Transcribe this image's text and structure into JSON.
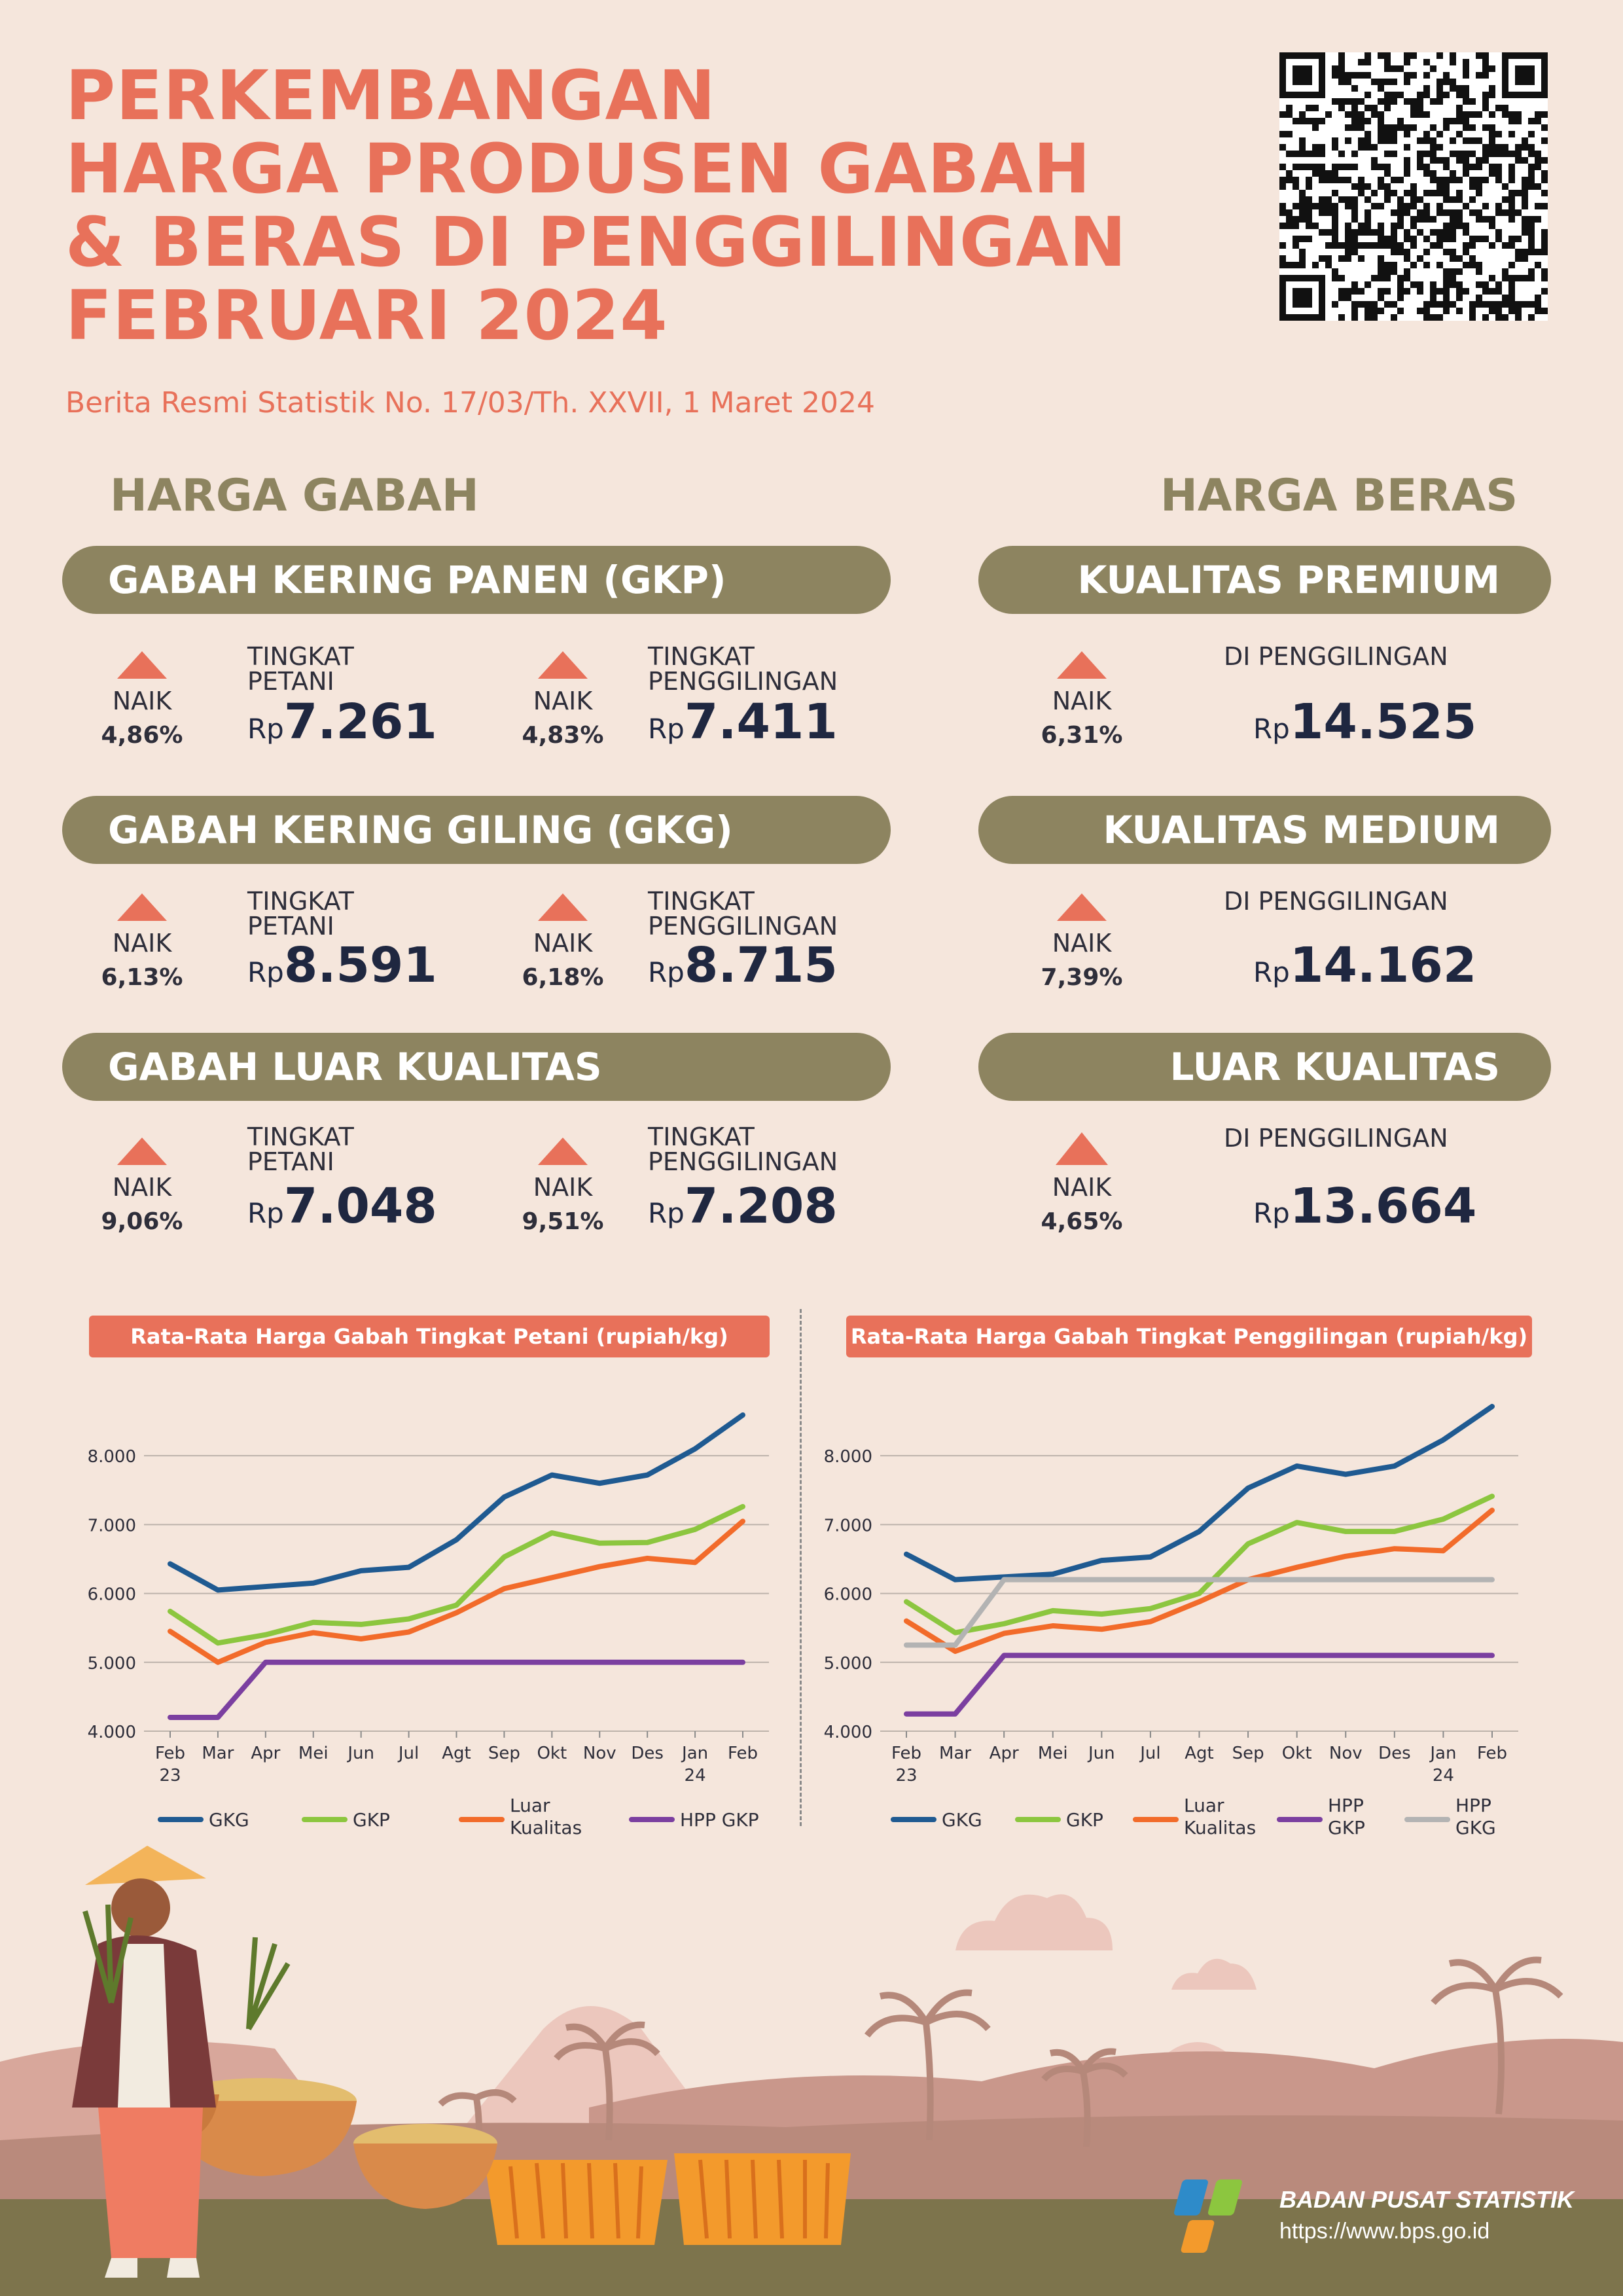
{
  "header": {
    "title_lines": [
      "PERKEMBANGAN",
      "HARGA PRODUSEN GABAH",
      "& BERAS DI PENGGILINGAN",
      "FEBRUARI 2024"
    ],
    "subtitle": "Berita Resmi Statistik No. 17/03/Th. XXVII, 1 Maret 2024"
  },
  "gabah": {
    "heading": "HARGA GABAH",
    "groups": [
      {
        "label": "GABAH KERING PANEN (GKP)",
        "items": [
          {
            "trend": "NAIK",
            "pct": "4,86%",
            "level": [
              "TINGKAT",
              "PETANI"
            ],
            "rp": "Rp",
            "price": "7.261"
          },
          {
            "trend": "NAIK",
            "pct": "4,83%",
            "level": [
              "TINGKAT",
              "PENGGILINGAN"
            ],
            "rp": "Rp",
            "price": "7.411"
          }
        ]
      },
      {
        "label": "GABAH KERING GILING (GKG)",
        "items": [
          {
            "trend": "NAIK",
            "pct": "6,13%",
            "level": [
              "TINGKAT",
              "PETANI"
            ],
            "rp": "Rp",
            "price": "8.591"
          },
          {
            "trend": "NAIK",
            "pct": "6,18%",
            "level": [
              "TINGKAT",
              "PENGGILINGAN"
            ],
            "rp": "Rp",
            "price": "8.715"
          }
        ]
      },
      {
        "label": "GABAH LUAR KUALITAS",
        "items": [
          {
            "trend": "NAIK",
            "pct": "9,06%",
            "level": [
              "TINGKAT",
              "PETANI"
            ],
            "rp": "Rp",
            "price": "7.048"
          },
          {
            "trend": "NAIK",
            "pct": "9,51%",
            "level": [
              "TINGKAT",
              "PENGGILINGAN"
            ],
            "rp": "Rp",
            "price": "7.208"
          }
        ]
      }
    ]
  },
  "beras": {
    "heading": "HARGA BERAS",
    "groups": [
      {
        "label": "KUALITAS PREMIUM",
        "trend": "NAIK",
        "pct": "6,31%",
        "level": "DI PENGGILINGAN",
        "rp": "Rp",
        "price": "14.525"
      },
      {
        "label": "KUALITAS MEDIUM",
        "trend": "NAIK",
        "pct": "7,39%",
        "level": "DI PENGGILINGAN",
        "rp": "Rp",
        "price": "14.162"
      },
      {
        "label": "LUAR KUALITAS",
        "trend": "NAIK",
        "pct": "4,65%",
        "level": "DI PENGGILINGAN",
        "rp": "Rp",
        "price": "13.664"
      }
    ]
  },
  "colors": {
    "accent": "#e8715a",
    "olive": "#8d8460",
    "background": "#f5e6dc",
    "GKG": "#1f5a91",
    "GKP": "#8cc63f",
    "Luar Kualitas": "#f26b2a",
    "HPP GKP": "#7b3fa0",
    "HPP GKG": "#b3b3b3"
  },
  "chart_data": [
    {
      "type": "line",
      "title": "Rata-Rata Harga Gabah Tingkat Petani (rupiah/kg)",
      "categories": [
        "Feb\n23",
        "Mar",
        "Apr",
        "Mei",
        "Jun",
        "Jul",
        "Agt",
        "Sep",
        "Okt",
        "Nov",
        "Des",
        "Jan\n24",
        "Feb"
      ],
      "yticks": [
        "4.000",
        "5.000",
        "6.000",
        "7.000",
        "8.000"
      ],
      "ylim": [
        4000,
        8800
      ],
      "grid": true,
      "legend_position": "bottom",
      "series": [
        {
          "name": "GKG",
          "legend": [
            "GKG"
          ],
          "values": [
            6430,
            6050,
            6100,
            6150,
            6330,
            6380,
            6780,
            7400,
            7720,
            7600,
            7720,
            8100,
            8591
          ]
        },
        {
          "name": "GKP",
          "legend": [
            "GKP"
          ],
          "values": [
            5740,
            5280,
            5400,
            5580,
            5550,
            5630,
            5830,
            6530,
            6880,
            6730,
            6740,
            6930,
            7261
          ]
        },
        {
          "name": "Luar Kualitas",
          "legend": [
            "Luar",
            "Kualitas"
          ],
          "values": [
            5450,
            5000,
            5290,
            5430,
            5340,
            5440,
            5720,
            6070,
            6230,
            6390,
            6510,
            6450,
            7048
          ]
        },
        {
          "name": "HPP GKP",
          "legend": [
            "HPP GKP"
          ],
          "values": [
            4200,
            4200,
            5000,
            5000,
            5000,
            5000,
            5000,
            5000,
            5000,
            5000,
            5000,
            5000,
            5000
          ]
        }
      ]
    },
    {
      "type": "line",
      "title": "Rata-Rata Harga Gabah Tingkat Penggilingan (rupiah/kg)",
      "categories": [
        "Feb\n23",
        "Mar",
        "Apr",
        "Mei",
        "Jun",
        "Jul",
        "Agt",
        "Sep",
        "Okt",
        "Nov",
        "Des",
        "Jan\n24",
        "Feb"
      ],
      "yticks": [
        "4.000",
        "5.000",
        "6.000",
        "7.000",
        "8.000"
      ],
      "ylim": [
        4000,
        8800
      ],
      "grid": true,
      "legend_position": "bottom",
      "series": [
        {
          "name": "GKG",
          "legend": [
            "GKG"
          ],
          "values": [
            6570,
            6200,
            6240,
            6280,
            6480,
            6530,
            6900,
            7530,
            7850,
            7730,
            7850,
            8230,
            8715
          ]
        },
        {
          "name": "GKP",
          "legend": [
            "GKP"
          ],
          "values": [
            5880,
            5430,
            5560,
            5750,
            5700,
            5780,
            6000,
            6720,
            7030,
            6900,
            6900,
            7080,
            7411
          ]
        },
        {
          "name": "Luar Kualitas",
          "legend": [
            "Luar",
            "Kualitas"
          ],
          "values": [
            5600,
            5160,
            5420,
            5530,
            5480,
            5590,
            5880,
            6200,
            6380,
            6540,
            6650,
            6620,
            7208
          ]
        },
        {
          "name": "HPP GKP",
          "legend": [
            "HPP",
            "GKP"
          ],
          "values": [
            4250,
            4250,
            5100,
            5100,
            5100,
            5100,
            5100,
            5100,
            5100,
            5100,
            5100,
            5100,
            5100
          ]
        },
        {
          "name": "HPP GKG",
          "legend": [
            "HPP",
            "GKG"
          ],
          "values": [
            5250,
            5250,
            6200,
            6200,
            6200,
            6200,
            6200,
            6200,
            6200,
            6200,
            6200,
            6200,
            6200
          ]
        }
      ]
    }
  ],
  "footer": {
    "org_name": "BADAN PUSAT STATISTIK",
    "url": "https://www.bps.go.id"
  }
}
